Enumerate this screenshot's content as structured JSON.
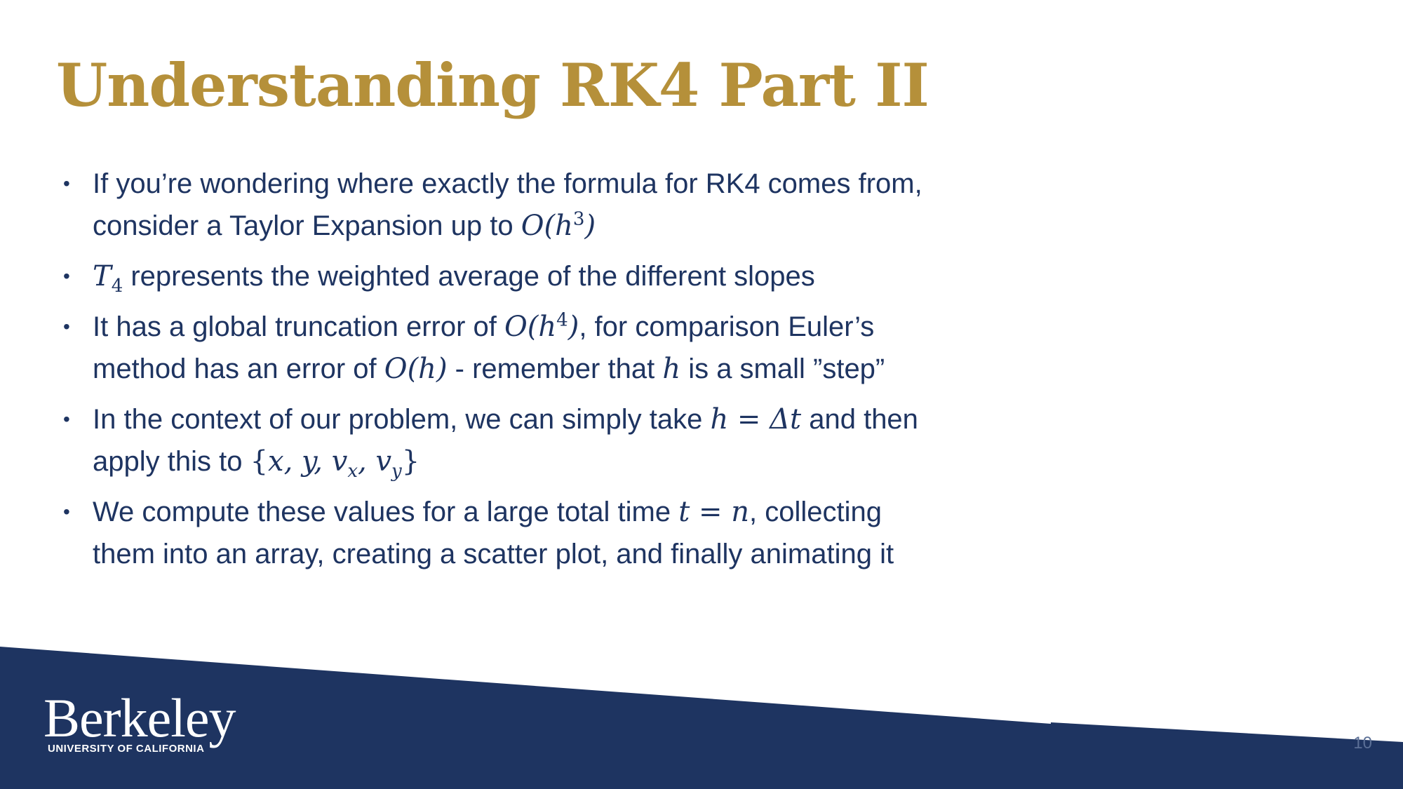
{
  "slide": {
    "title": "Understanding RK4 Part II",
    "page_number": "10"
  },
  "bullets": {
    "b1": {
      "line1": "If you’re wondering where exactly the formula for RK4 comes from,",
      "line2_prefix": "consider a Taylor Expansion up to ",
      "math": "O(h",
      "exp": "3",
      "math_close": ")"
    },
    "b2": {
      "math": "T",
      "sub": "4",
      "text": " represents the weighted average of the different slopes"
    },
    "b3": {
      "prefix": "It has a global truncation error of ",
      "math": "O(h",
      "exp": "4",
      "math_close": ")",
      "suffix": ", for comparison Euler’s",
      "line2_prefix": "method has an error of ",
      "math2": "O(h)",
      "line2_mid": " - remember that ",
      "var": "h",
      "line2_suffix": " is a small ”step”"
    },
    "b4": {
      "prefix": "In the context of our problem, we can simply take ",
      "math": "h = Δt",
      "suffix": " and then",
      "line2_prefix": "apply this to ",
      "set_open": "{",
      "set_body": "x, y, v",
      "sub_x": "x",
      "set_mid": ", v",
      "sub_y": "y",
      "set_close": "}"
    },
    "b5": {
      "prefix": "We compute these values for a large total time ",
      "math": "t = n",
      "suffix": ", collecting",
      "line2": "them into an array, creating a scatter plot, and finally animating it"
    }
  },
  "logo": {
    "wordmark": "Berkeley",
    "subtitle": "UNIVERSITY OF CALIFORNIA"
  },
  "colors": {
    "title_gold": "#b5903a",
    "navy": "#1e3461"
  }
}
